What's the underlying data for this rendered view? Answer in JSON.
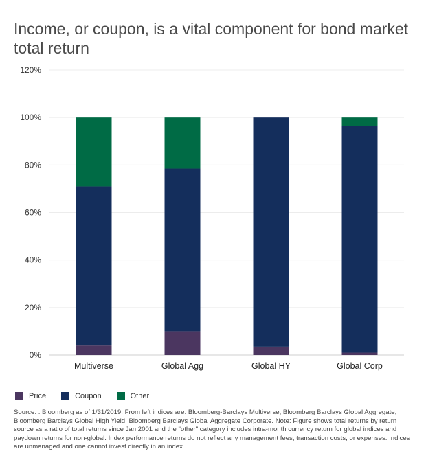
{
  "title": "Income, or coupon, is a vital component for bond market total return",
  "source": "Source: : Bloomberg as of 1/31/2019. From left indices are: Bloomberg-Barclays Multiverse, Bloomberg Barclays Global Aggregate, Bloomberg Barclays Global High Yield, Bloomberg Barclays Global Aggregate Corporate. Note: Figure shows total returns by return source as a ratio of total returns since Jan 2001 and the \"other\" category includes intra-month currency return for global indices and paydown returns for non-global. Index performance returns do not reflect any management fees, transaction costs, or expenses. Indices are unmanaged and one cannot invest directly in an index.",
  "chart_data": {
    "type": "bar",
    "stacked": true,
    "categories": [
      "Multiverse",
      "Global Agg",
      "Global HY",
      "Global Corp"
    ],
    "series": [
      {
        "name": "Price",
        "color": "#4b3660",
        "values": [
          4,
          10,
          3.5,
          1
        ]
      },
      {
        "name": "Coupon",
        "color": "#142e5c",
        "values": [
          67,
          68.5,
          96.5,
          95.5
        ]
      },
      {
        "name": "Other",
        "color": "#006b45",
        "values": [
          29,
          21.5,
          0,
          3.5
        ]
      }
    ],
    "ylim": [
      0,
      120
    ],
    "yticks": [
      "0%",
      "20%",
      "40%",
      "60%",
      "80%",
      "100%",
      "120%"
    ],
    "grid": true,
    "legend_position": "bottom-left"
  }
}
